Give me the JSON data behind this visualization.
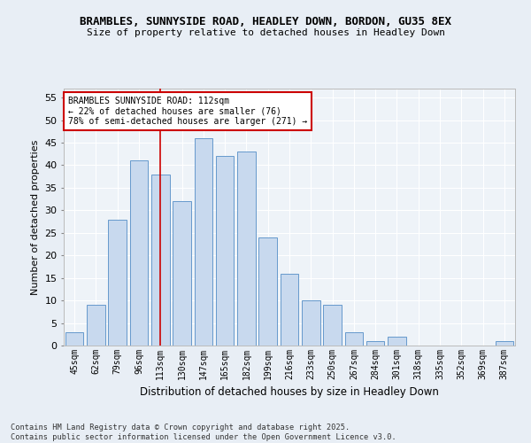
{
  "title1": "BRAMBLES, SUNNYSIDE ROAD, HEADLEY DOWN, BORDON, GU35 8EX",
  "title2": "Size of property relative to detached houses in Headley Down",
  "xlabel": "Distribution of detached houses by size in Headley Down",
  "ylabel": "Number of detached properties",
  "categories": [
    "45sqm",
    "62sqm",
    "79sqm",
    "96sqm",
    "113sqm",
    "130sqm",
    "147sqm",
    "165sqm",
    "182sqm",
    "199sqm",
    "216sqm",
    "233sqm",
    "250sqm",
    "267sqm",
    "284sqm",
    "301sqm",
    "318sqm",
    "335sqm",
    "352sqm",
    "369sqm",
    "387sqm"
  ],
  "values": [
    3,
    9,
    28,
    41,
    38,
    32,
    46,
    42,
    43,
    24,
    16,
    10,
    9,
    3,
    1,
    2,
    0,
    0,
    0,
    0,
    1
  ],
  "bar_color": "#c8d9ee",
  "bar_edge_color": "#6699cc",
  "vline_color": "#cc0000",
  "annotation_text": "BRAMBLES SUNNYSIDE ROAD: 112sqm\n← 22% of detached houses are smaller (76)\n78% of semi-detached houses are larger (271) →",
  "annotation_box_color": "#ffffff",
  "annotation_box_edge": "#cc0000",
  "ylim": [
    0,
    57
  ],
  "yticks": [
    0,
    5,
    10,
    15,
    20,
    25,
    30,
    35,
    40,
    45,
    50,
    55
  ],
  "footer": "Contains HM Land Registry data © Crown copyright and database right 2025.\nContains public sector information licensed under the Open Government Licence v3.0.",
  "bg_color": "#e8eef5",
  "plot_bg_color": "#eef3f8",
  "grid_color": "#ffffff",
  "bar_width": 0.85
}
